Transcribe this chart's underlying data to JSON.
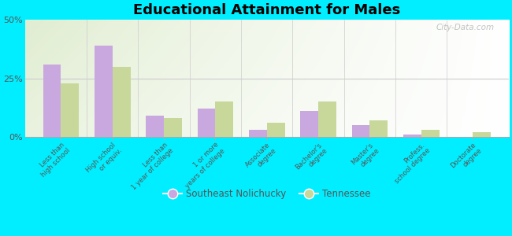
{
  "title": "Educational Attainment for Males",
  "categories": [
    "Less than\nhigh school",
    "High school\nor equiv.",
    "Less than\n1 year of college",
    "1 or more\nyears of college",
    "Associate\ndegree",
    "Bachelor's\ndegree",
    "Master's\ndegree",
    "Profess.\nschool degree",
    "Doctorate\ndegree"
  ],
  "southeast_nolichucky": [
    31,
    39,
    9,
    12,
    3,
    11,
    5,
    1,
    0
  ],
  "tennessee": [
    23,
    30,
    8,
    15,
    6,
    15,
    7,
    3,
    2
  ],
  "color_sn": "#c9a8e0",
  "color_tn": "#c8d89a",
  "background_outer": "#00eeff",
  "ylim": [
    0,
    50
  ],
  "yticks": [
    0,
    25,
    50
  ],
  "ytick_labels": [
    "0%",
    "25%",
    "50%"
  ],
  "bar_width": 0.35,
  "legend_labels": [
    "Southeast Nolichucky",
    "Tennessee"
  ],
  "watermark": "City-Data.com"
}
